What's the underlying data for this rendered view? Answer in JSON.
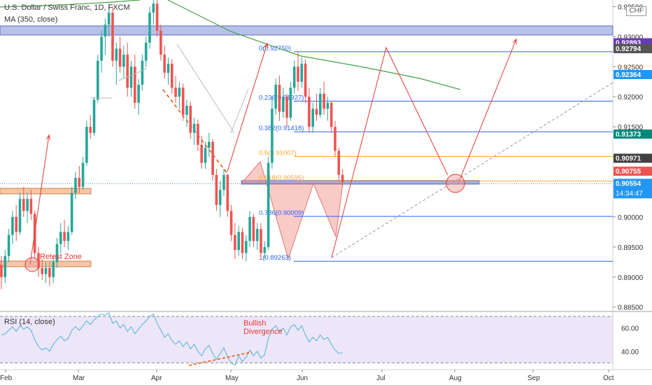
{
  "header": {
    "title": "U.S. Dollar / Swiss Franc, 1D, FXCM",
    "indicator": "MA (350, close)",
    "currency": "CHF",
    "rsi_label": "RSI (14, close)"
  },
  "price_scale": {
    "ticks": [
      "0.93500",
      "0.93000",
      "0.92500",
      "0.92000",
      "0.91500",
      "0.91000",
      "0.90500",
      "0.90000",
      "0.89500",
      "0.89000",
      "0.88500"
    ],
    "ylim": [
      0.8845,
      0.9361
    ]
  },
  "time_axis": {
    "labels": [
      "Feb",
      "Mar",
      "Apr",
      "May",
      "Jun",
      "Jul",
      "Aug",
      "Sep",
      "Oct"
    ]
  },
  "rsi_scale": {
    "ticks": [
      "60.00",
      "40.00"
    ],
    "levels": [
      70,
      30
    ],
    "ylim": [
      26,
      73
    ]
  },
  "price_badges": [
    {
      "label": "0.92893",
      "value": 0.92893,
      "color": "#673ab7"
    },
    {
      "label": "0.92794",
      "value": 0.92794,
      "color": "#555555"
    },
    {
      "label": "0.92364",
      "value": 0.92364,
      "color": "#2196f3"
    },
    {
      "label": "0.91373",
      "value": 0.91373,
      "color": "#00897b"
    },
    {
      "label": "0.90971",
      "value": 0.90971,
      "color": "#424242"
    },
    {
      "label": "0.90755",
      "value": 0.90755,
      "color": "#ef5350"
    },
    {
      "label": "0.90554",
      "value": 0.90554,
      "color": "#2196f3",
      "sub": "14:34:47"
    }
  ],
  "fib_levels": [
    {
      "label": "0(0.92750)",
      "value": 0.9275,
      "color": "#2962ff"
    },
    {
      "label": "0.236(0.91927)",
      "value": 0.91927,
      "color": "#2962ff"
    },
    {
      "label": "0.382(0.91418)",
      "value": 0.91418,
      "color": "#2962ff"
    },
    {
      "label": "0.5(0.91007)",
      "value": 0.91007,
      "color": "#f9a825"
    },
    {
      "label": "0.618(0.90595)",
      "value": 0.90595,
      "color": "#f9a825"
    },
    {
      "label": "0.786(0.90009)",
      "value": 0.90009,
      "color": "#2962ff"
    },
    {
      "label": "1(0.89263)",
      "value": 0.89263,
      "color": "#2962ff"
    }
  ],
  "annotations": {
    "retest_zone": "Retest Zone",
    "bullish_divergence_line1": "Bullish",
    "bullish_divergence_line2": "Divergence"
  },
  "chart_data": {
    "type": "candlestick",
    "series_ma": "MA (350, close)",
    "candles": [
      [
        0.892,
        0.8935,
        0.888,
        0.89
      ],
      [
        0.89,
        0.8945,
        0.889,
        0.8935
      ],
      [
        0.8935,
        0.898,
        0.8925,
        0.897
      ],
      [
        0.897,
        0.901,
        0.8955,
        0.9
      ],
      [
        0.9,
        0.902,
        0.896,
        0.8975
      ],
      [
        0.8975,
        0.904,
        0.897,
        0.903
      ],
      [
        0.903,
        0.905,
        0.9,
        0.901
      ],
      [
        0.901,
        0.904,
        0.899,
        0.903
      ],
      [
        0.903,
        0.9045,
        0.8995,
        0.9005
      ],
      [
        0.9005,
        0.901,
        0.893,
        0.894
      ],
      [
        0.894,
        0.895,
        0.89,
        0.8915
      ],
      [
        0.8915,
        0.893,
        0.8895,
        0.8905
      ],
      [
        0.8905,
        0.8925,
        0.889,
        0.8915
      ],
      [
        0.8915,
        0.8925,
        0.8885,
        0.89
      ],
      [
        0.89,
        0.8935,
        0.889,
        0.8925
      ],
      [
        0.8925,
        0.8965,
        0.8915,
        0.8955
      ],
      [
        0.8955,
        0.899,
        0.894,
        0.8975
      ],
      [
        0.8975,
        0.8995,
        0.895,
        0.896
      ],
      [
        0.896,
        0.8985,
        0.8945,
        0.8975
      ],
      [
        0.8975,
        0.905,
        0.897,
        0.904
      ],
      [
        0.904,
        0.9075,
        0.903,
        0.9065
      ],
      [
        0.9065,
        0.9085,
        0.904,
        0.905
      ],
      [
        0.905,
        0.91,
        0.9045,
        0.909
      ],
      [
        0.909,
        0.916,
        0.9085,
        0.915
      ],
      [
        0.915,
        0.917,
        0.913,
        0.914
      ],
      [
        0.914,
        0.92,
        0.9135,
        0.9195
      ],
      [
        0.9195,
        0.927,
        0.919,
        0.926
      ],
      [
        0.926,
        0.931,
        0.924,
        0.93
      ],
      [
        0.93,
        0.933,
        0.927,
        0.932
      ],
      [
        0.932,
        0.9355,
        0.93,
        0.934
      ],
      [
        0.934,
        0.935,
        0.925,
        0.926
      ],
      [
        0.926,
        0.929,
        0.922,
        0.928
      ],
      [
        0.928,
        0.93,
        0.924,
        0.925
      ],
      [
        0.925,
        0.9285,
        0.923,
        0.927
      ],
      [
        0.927,
        0.929,
        0.92,
        0.9215
      ],
      [
        0.9215,
        0.926,
        0.92,
        0.925
      ],
      [
        0.925,
        0.927,
        0.918,
        0.919
      ],
      [
        0.919,
        0.923,
        0.917,
        0.922
      ],
      [
        0.922,
        0.927,
        0.921,
        0.926
      ],
      [
        0.926,
        0.93,
        0.925,
        0.929
      ],
      [
        0.929,
        0.935,
        0.928,
        0.934
      ],
      [
        0.934,
        0.9361,
        0.932,
        0.9355
      ],
      [
        0.9355,
        0.9361,
        0.93,
        0.931
      ],
      [
        0.931,
        0.932,
        0.926,
        0.927
      ],
      [
        0.927,
        0.9285,
        0.923,
        0.924
      ],
      [
        0.924,
        0.9265,
        0.922,
        0.9255
      ],
      [
        0.9255,
        0.9262,
        0.9205,
        0.9215
      ],
      [
        0.9215,
        0.9235,
        0.919,
        0.92
      ],
      [
        0.92,
        0.9225,
        0.918,
        0.9215
      ],
      [
        0.9215,
        0.9222,
        0.916,
        0.917
      ],
      [
        0.917,
        0.9195,
        0.915,
        0.9185
      ],
      [
        0.9185,
        0.9192,
        0.913,
        0.914
      ],
      [
        0.914,
        0.9165,
        0.912,
        0.9155
      ],
      [
        0.9155,
        0.9162,
        0.911,
        0.912
      ],
      [
        0.912,
        0.9135,
        0.908,
        0.909
      ],
      [
        0.909,
        0.9125,
        0.908,
        0.9115
      ],
      [
        0.9115,
        0.914,
        0.91,
        0.9125
      ],
      [
        0.9125,
        0.913,
        0.906,
        0.907
      ],
      [
        0.907,
        0.908,
        0.901,
        0.902
      ],
      [
        0.902,
        0.906,
        0.9,
        0.9045
      ],
      [
        0.9045,
        0.908,
        0.9035,
        0.907
      ],
      [
        0.907,
        0.9072,
        0.9,
        0.901
      ],
      [
        0.901,
        0.902,
        0.896,
        0.897
      ],
      [
        0.897,
        0.899,
        0.893,
        0.8945
      ],
      [
        0.8945,
        0.8985,
        0.8935,
        0.8975
      ],
      [
        0.8975,
        0.8982,
        0.893,
        0.894
      ],
      [
        0.894,
        0.897,
        0.8926,
        0.896
      ],
      [
        0.896,
        0.901,
        0.895,
        0.9
      ],
      [
        0.9,
        0.9005,
        0.895,
        0.896
      ],
      [
        0.896,
        0.899,
        0.8945,
        0.898
      ],
      [
        0.898,
        0.899,
        0.893,
        0.894
      ],
      [
        0.894,
        0.896,
        0.893,
        0.895
      ],
      [
        0.895,
        0.91,
        0.8945,
        0.909
      ],
      [
        0.909,
        0.92,
        0.908,
        0.918
      ],
      [
        0.918,
        0.923,
        0.917,
        0.922
      ],
      [
        0.922,
        0.9235,
        0.916,
        0.9175
      ],
      [
        0.9175,
        0.9215,
        0.9165,
        0.92
      ],
      [
        0.92,
        0.9205,
        0.915,
        0.9165
      ],
      [
        0.9165,
        0.9225,
        0.916,
        0.9215
      ],
      [
        0.9215,
        0.926,
        0.9205,
        0.925
      ],
      [
        0.925,
        0.9275,
        0.921,
        0.9225
      ],
      [
        0.9225,
        0.9265,
        0.9215,
        0.9255
      ],
      [
        0.9255,
        0.9262,
        0.919,
        0.92
      ],
      [
        0.92,
        0.9215,
        0.914,
        0.915
      ],
      [
        0.915,
        0.919,
        0.914,
        0.918
      ],
      [
        0.918,
        0.9205,
        0.916,
        0.917
      ],
      [
        0.917,
        0.9215,
        0.9165,
        0.9205
      ],
      [
        0.9205,
        0.9225,
        0.917,
        0.918
      ],
      [
        0.918,
        0.92,
        0.916,
        0.919
      ],
      [
        0.919,
        0.9192,
        0.914,
        0.915
      ],
      [
        0.915,
        0.916,
        0.91,
        0.911
      ],
      [
        0.911,
        0.9115,
        0.906,
        0.907
      ],
      [
        0.907,
        0.908,
        0.905,
        0.9058
      ]
    ]
  },
  "rsi_data": [
    54,
    55,
    58,
    61,
    57,
    62,
    59,
    61,
    58,
    50,
    44,
    41,
    43,
    40,
    46,
    50,
    53,
    49,
    51,
    58,
    61,
    58,
    62,
    66,
    63,
    67,
    70,
    72,
    71,
    73,
    64,
    66,
    60,
    63,
    57,
    61,
    55,
    59,
    63,
    66,
    70,
    72,
    64,
    58,
    52,
    55,
    49,
    46,
    49,
    44,
    48,
    42,
    46,
    40,
    36,
    42,
    45,
    38,
    33,
    38,
    43,
    35,
    30,
    28,
    36,
    31,
    35,
    41,
    36,
    40,
    34,
    37,
    51,
    59,
    62,
    57,
    60,
    54,
    61,
    63,
    58,
    62,
    54,
    48,
    52,
    49,
    54,
    50,
    52,
    46,
    41,
    38,
    39
  ]
}
